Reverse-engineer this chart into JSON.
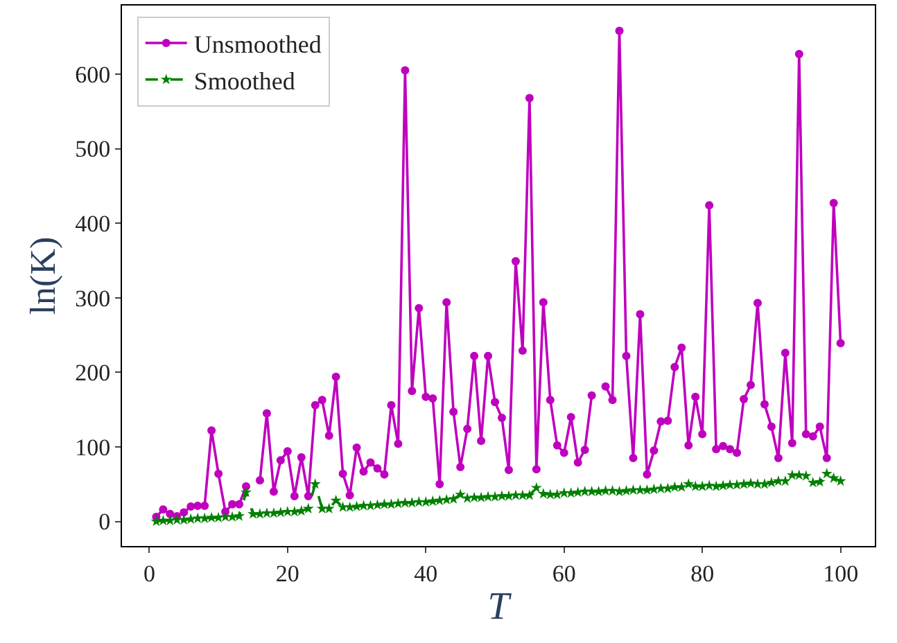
{
  "chart_data": {
    "type": "line",
    "xlabel": "T",
    "ylabel": "ln(K)",
    "x": [
      1,
      2,
      3,
      4,
      5,
      6,
      7,
      8,
      9,
      10,
      11,
      12,
      13,
      14,
      15,
      16,
      17,
      18,
      19,
      20,
      21,
      22,
      23,
      24,
      25,
      26,
      27,
      28,
      29,
      30,
      31,
      32,
      33,
      34,
      35,
      36,
      37,
      38,
      39,
      40,
      41,
      42,
      43,
      44,
      45,
      46,
      47,
      48,
      49,
      50,
      51,
      52,
      53,
      54,
      55,
      56,
      57,
      58,
      59,
      60,
      61,
      62,
      63,
      64,
      65,
      66,
      67,
      68,
      69,
      70,
      71,
      72,
      73,
      74,
      75,
      76,
      77,
      78,
      79,
      80,
      81,
      82,
      83,
      84,
      85,
      86,
      87,
      88,
      89,
      90,
      91,
      92,
      93,
      94,
      95,
      96,
      97,
      98,
      99,
      100
    ],
    "series": [
      {
        "name": "Unsmoothed",
        "color": "#bf00bf",
        "marker": "circle",
        "line_style": "solid",
        "values": [
          6,
          16,
          10,
          7,
          12,
          20,
          21,
          21,
          122,
          64,
          13,
          23,
          23,
          47,
          null,
          55,
          145,
          40,
          82,
          94,
          34,
          86,
          34,
          156,
          163,
          115,
          194,
          64,
          35,
          99,
          67,
          79,
          71,
          63,
          156,
          104,
          605,
          175,
          286,
          167,
          165,
          50,
          294,
          147,
          73,
          124,
          222,
          108,
          222,
          160,
          139,
          69,
          349,
          229,
          568,
          70,
          294,
          163,
          102,
          92,
          140,
          79,
          96,
          169,
          null,
          181,
          163,
          658,
          222,
          85,
          278,
          63,
          95,
          134,
          135,
          207,
          233,
          102,
          167,
          117,
          424,
          97,
          101,
          97,
          92,
          164,
          183,
          293,
          157,
          127,
          85,
          226,
          105,
          627,
          117,
          114,
          127,
          85,
          427,
          239
        ]
      },
      {
        "name": "Smoothed",
        "color": "#008000",
        "marker": "star",
        "line_style": "dashed",
        "values": [
          0,
          1,
          1,
          2,
          2,
          3,
          4,
          4,
          5,
          5,
          6,
          6,
          7,
          39,
          10,
          10,
          11,
          11,
          12,
          13,
          13,
          14,
          17,
          50,
          17,
          17,
          28,
          19,
          19,
          20,
          21,
          21,
          22,
          23,
          23,
          24,
          25,
          25,
          26,
          26,
          27,
          28,
          29,
          30,
          36,
          31,
          32,
          32,
          33,
          33,
          34,
          34,
          35,
          35,
          35,
          45,
          37,
          36,
          36,
          38,
          38,
          39,
          40,
          40,
          40,
          41,
          41,
          40,
          41,
          42,
          42,
          42,
          43,
          44,
          44,
          46,
          46,
          50,
          47,
          47,
          48,
          47,
          48,
          49,
          49,
          50,
          51,
          50,
          50,
          52,
          54,
          54,
          62,
          62,
          61,
          52,
          53,
          64,
          58,
          54
        ]
      }
    ],
    "xlim": [
      -3.95,
      104.95
    ],
    "xticks": [
      0,
      20,
      40,
      60,
      80,
      100
    ],
    "ylim": [
      -33,
      692
    ],
    "yticks": [
      0,
      100,
      200,
      300,
      400,
      500,
      600
    ],
    "legend": "top left"
  }
}
